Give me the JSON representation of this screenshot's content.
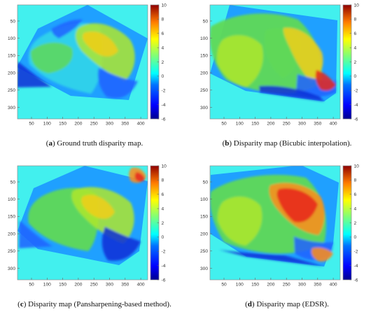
{
  "figures": [
    {
      "caption_letter": "a",
      "caption_text": "Ground truth disparity map.",
      "mask_style": "rotated-rectangle",
      "colorbar_ticks": [
        "10",
        "8",
        "6",
        "4",
        "2",
        "0",
        "-2",
        "-4",
        "-6"
      ],
      "x_ticks": [
        "50",
        "100",
        "150",
        "200",
        "250",
        "300",
        "350",
        "400"
      ],
      "y_ticks": [
        "50",
        "100",
        "150",
        "200",
        "250",
        "300"
      ]
    },
    {
      "caption_letter": "b",
      "caption_text": "Disparity map (Bicubic interpolation).",
      "mask_style": "rotated-rectangle",
      "colorbar_ticks": [
        "10",
        "8",
        "6",
        "4",
        "2",
        "0",
        "-2",
        "-4",
        "-6"
      ],
      "x_ticks": [
        "50",
        "100",
        "150",
        "200",
        "250",
        "300",
        "350",
        "400"
      ],
      "y_ticks": [
        "50",
        "100",
        "150",
        "200",
        "250",
        "300"
      ]
    },
    {
      "caption_letter": "c",
      "caption_text": "Disparity map (Pansharpening-based method).",
      "mask_style": "rotated-rectangle",
      "colorbar_ticks": [
        "10",
        "8",
        "6",
        "4",
        "2",
        "0",
        "-2",
        "-4",
        "-6"
      ],
      "x_ticks": [
        "50",
        "100",
        "150",
        "200",
        "250",
        "300",
        "350",
        "400"
      ],
      "y_ticks": [
        "50",
        "100",
        "150",
        "200",
        "250",
        "300"
      ]
    },
    {
      "caption_letter": "d",
      "caption_text": "Disparity map (EDSR).",
      "mask_style": "rotated-rectangle",
      "colorbar_ticks": [
        "10",
        "8",
        "6",
        "4",
        "2",
        "0",
        "-2",
        "-4",
        "-6"
      ],
      "x_ticks": [
        "50",
        "100",
        "150",
        "200",
        "250",
        "300",
        "350",
        "400"
      ],
      "y_ticks": [
        "50",
        "100",
        "150",
        "200",
        "250",
        "300"
      ]
    }
  ],
  "colors": {
    "background": "#42f0ee",
    "dark_blue": "#0f2ed7",
    "medium_blue": "#2262ff",
    "sky": "#1fa0ff",
    "cyan": "#2ed3ea",
    "green": "#60d957",
    "yellow_green": "#aee62f",
    "yellow": "#f0ce17",
    "orange": "#ff8d1a",
    "red": "#e8261c"
  }
}
